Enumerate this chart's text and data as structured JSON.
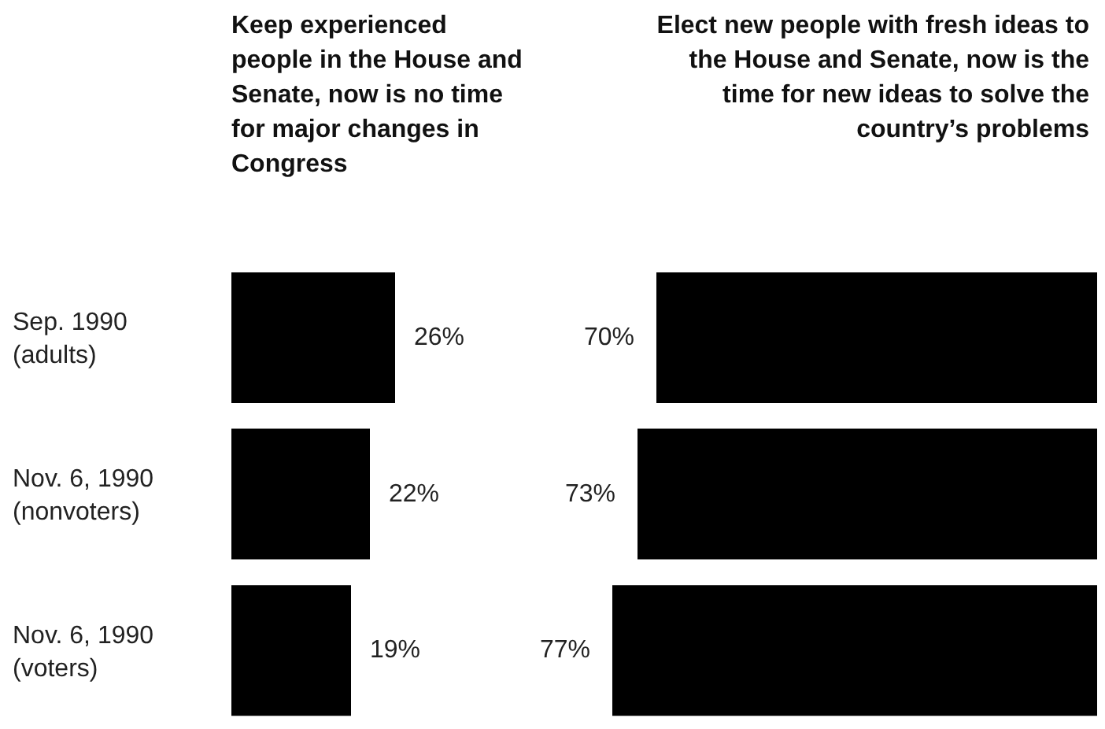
{
  "chart_data": [
    {
      "type": "bar",
      "orientation": "horizontal",
      "title": "Keep experienced people in the House and Senate, now is no time for major changes in Congress",
      "categories": [
        "Sep. 1990 (adults)",
        "Nov. 6, 1990 (nonvoters)",
        "Nov. 6, 1990 (voters)"
      ],
      "values": [
        26,
        22,
        19
      ],
      "value_labels": [
        "26%",
        "22%",
        "19%"
      ],
      "color": "#000000",
      "tick_labels": "y"
    },
    {
      "type": "bar",
      "orientation": "horizontal",
      "title": "Elect new people with fresh ideas to the House and Senate, now is the time for new ideas to solve the country’s problems",
      "categories": [
        null,
        null,
        null
      ],
      "values": [
        70,
        73,
        77
      ],
      "value_labels": [
        "70%",
        "73%",
        "77%"
      ],
      "color": "#000000",
      "tick_labels": false
    }
  ]
}
